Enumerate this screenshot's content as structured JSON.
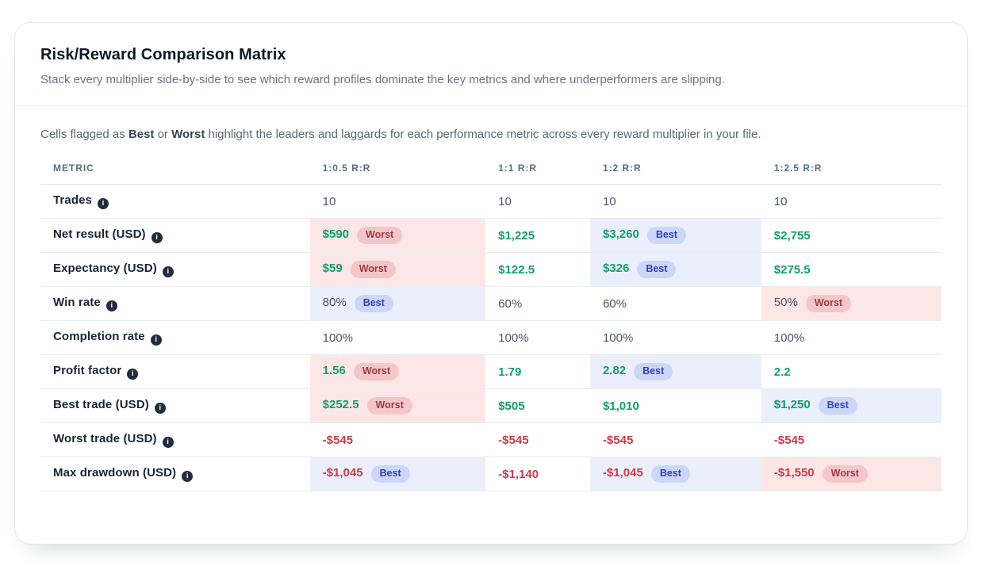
{
  "card": {
    "title": "Risk/Reward Comparison Matrix",
    "subtitle": "Stack every multiplier side-by-side to see which reward profiles dominate the key metrics and where underperformers are slipping.",
    "intro": {
      "prefix": "Cells flagged as ",
      "best_word": "Best",
      "middle": " or ",
      "worst_word": "Worst",
      "suffix": " highlight the leaders and laggards for each performance metric across every reward multiplier in your file."
    }
  },
  "colors": {
    "value_green": "#149e6a",
    "value_red": "#cb3b4b",
    "best_cell_bg": "#ebeffb",
    "best_badge_bg": "#ccd6f8",
    "best_badge_text": "#3240ba",
    "worst_cell_bg": "#fce6e6",
    "worst_badge_bg": "#f3c6c9",
    "worst_badge_text": "#9e3a42"
  },
  "table": {
    "columns": [
      "Metric",
      "1:0.5 R:R",
      "1:1 R:R",
      "1:2 R:R",
      "1:2.5 R:R"
    ],
    "info_icon_glyph": "i",
    "rows": [
      {
        "metric": "Trades",
        "cells": [
          {
            "value": "10",
            "tone": "neutral"
          },
          {
            "value": "10",
            "tone": "neutral"
          },
          {
            "value": "10",
            "tone": "neutral"
          },
          {
            "value": "10",
            "tone": "neutral"
          }
        ]
      },
      {
        "metric": "Net result (USD)",
        "cells": [
          {
            "value": "$590",
            "tone": "green",
            "flag": "Worst"
          },
          {
            "value": "$1,225",
            "tone": "green"
          },
          {
            "value": "$3,260",
            "tone": "green",
            "flag": "Best"
          },
          {
            "value": "$2,755",
            "tone": "green"
          }
        ]
      },
      {
        "metric": "Expectancy (USD)",
        "cells": [
          {
            "value": "$59",
            "tone": "green",
            "flag": "Worst"
          },
          {
            "value": "$122.5",
            "tone": "green"
          },
          {
            "value": "$326",
            "tone": "green",
            "flag": "Best"
          },
          {
            "value": "$275.5",
            "tone": "green"
          }
        ]
      },
      {
        "metric": "Win rate",
        "cells": [
          {
            "value": "80%",
            "tone": "neutral",
            "flag": "Best"
          },
          {
            "value": "60%",
            "tone": "neutral"
          },
          {
            "value": "60%",
            "tone": "neutral"
          },
          {
            "value": "50%",
            "tone": "neutral",
            "flag": "Worst"
          }
        ]
      },
      {
        "metric": "Completion rate",
        "cells": [
          {
            "value": "100%",
            "tone": "neutral"
          },
          {
            "value": "100%",
            "tone": "neutral"
          },
          {
            "value": "100%",
            "tone": "neutral"
          },
          {
            "value": "100%",
            "tone": "neutral"
          }
        ]
      },
      {
        "metric": "Profit factor",
        "cells": [
          {
            "value": "1.56",
            "tone": "green",
            "flag": "Worst"
          },
          {
            "value": "1.79",
            "tone": "green"
          },
          {
            "value": "2.82",
            "tone": "green",
            "flag": "Best"
          },
          {
            "value": "2.2",
            "tone": "green"
          }
        ]
      },
      {
        "metric": "Best trade (USD)",
        "cells": [
          {
            "value": "$252.5",
            "tone": "green",
            "flag": "Worst"
          },
          {
            "value": "$505",
            "tone": "green"
          },
          {
            "value": "$1,010",
            "tone": "green"
          },
          {
            "value": "$1,250",
            "tone": "green",
            "flag": "Best"
          }
        ]
      },
      {
        "metric": "Worst trade (USD)",
        "cells": [
          {
            "value": "-$545",
            "tone": "red"
          },
          {
            "value": "-$545",
            "tone": "red"
          },
          {
            "value": "-$545",
            "tone": "red"
          },
          {
            "value": "-$545",
            "tone": "red"
          }
        ]
      },
      {
        "metric": "Max drawdown (USD)",
        "cells": [
          {
            "value": "-$1,045",
            "tone": "red",
            "flag": "Best"
          },
          {
            "value": "-$1,140",
            "tone": "red"
          },
          {
            "value": "-$1,045",
            "tone": "red",
            "flag": "Best"
          },
          {
            "value": "-$1,550",
            "tone": "red",
            "flag": "Worst"
          }
        ]
      }
    ]
  }
}
